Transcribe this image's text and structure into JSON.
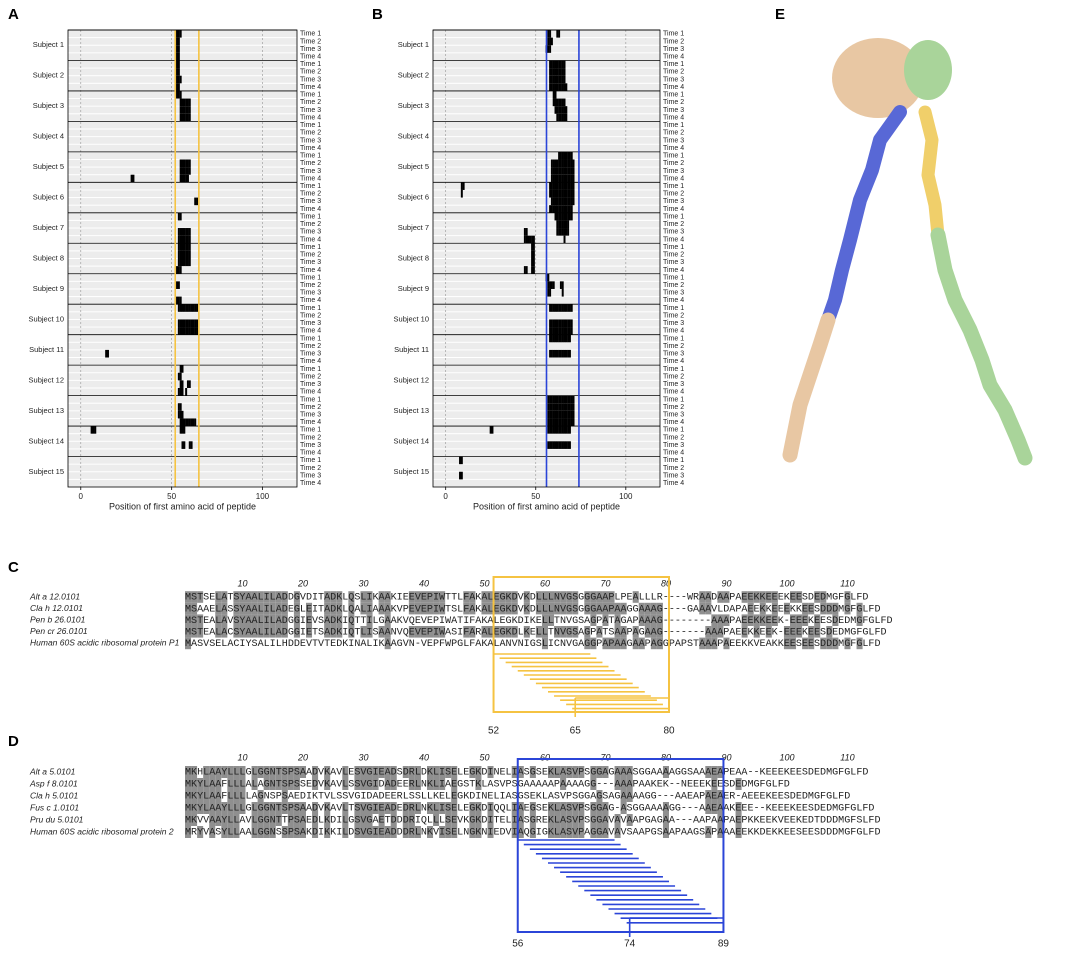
{
  "chart_data": [
    {
      "type": "tile",
      "label": "A",
      "xlabel": "Position of first amino acid of peptide",
      "xlim": [
        -7,
        119
      ],
      "xticks": [
        0,
        50,
        100
      ],
      "region": [
        52,
        65
      ],
      "region_color": "#f5c342",
      "color": "#000000",
      "subjects": [
        "Subject 1",
        "Subject 2",
        "Subject 3",
        "Subject 4",
        "Subject 5",
        "Subject 6",
        "Subject 7",
        "Subject 8",
        "Subject 9",
        "Subject 10",
        "Subject 11",
        "Subject 12",
        "Subject 13",
        "Subject 14",
        "Subject 15"
      ],
      "times": [
        "Time 1",
        "Time 2",
        "Time 3",
        "Time 4"
      ],
      "values": [
        [
          [
            53,
            54,
            55
          ],
          [
            53,
            54
          ],
          [
            53,
            54
          ],
          [
            53,
            54
          ]
        ],
        [
          [
            53,
            54
          ],
          [
            53,
            54
          ],
          [
            53,
            54,
            55
          ],
          [
            53,
            54
          ]
        ],
        [
          [
            53,
            54,
            55
          ],
          [
            55,
            56,
            57,
            58,
            59,
            60
          ],
          [
            55,
            56,
            57,
            58,
            59,
            60
          ],
          [
            55,
            56,
            57,
            58,
            59,
            60
          ]
        ],
        [
          [],
          [],
          [],
          []
        ],
        [
          [],
          [
            55,
            56,
            57,
            58,
            59,
            60
          ],
          [
            55,
            56,
            57,
            58,
            59,
            60
          ],
          [
            28,
            29,
            55,
            56,
            57,
            58,
            59
          ]
        ],
        [
          [],
          [],
          [
            63,
            64
          ],
          []
        ],
        [
          [
            54,
            55
          ],
          [],
          [
            54,
            55,
            56,
            57,
            58,
            59,
            60
          ],
          [
            54,
            55,
            56,
            57,
            58,
            59,
            60
          ]
        ],
        [
          [
            54,
            55,
            56,
            57,
            58,
            59,
            60
          ],
          [
            54,
            55,
            56,
            57,
            58,
            59,
            60
          ],
          [
            54,
            55,
            56,
            57,
            58,
            59,
            60
          ],
          [
            53,
            54,
            55
          ]
        ],
        [
          [],
          [
            53,
            54
          ],
          [],
          [
            53,
            54,
            55
          ]
        ],
        [
          [
            54,
            55,
            56,
            57,
            58,
            59,
            60,
            61,
            62,
            63,
            64
          ],
          [],
          [
            54,
            55,
            56,
            57,
            58,
            59,
            60,
            61,
            62,
            63,
            64
          ],
          [
            54,
            55,
            56,
            57,
            58,
            59,
            60,
            61,
            62,
            63,
            64
          ]
        ],
        [
          [],
          [],
          [
            14,
            15
          ],
          []
        ],
        [
          [
            55,
            56
          ],
          [
            54,
            55
          ],
          [
            55,
            56,
            59,
            60
          ],
          [
            54,
            55,
            56,
            58
          ]
        ],
        [
          [],
          [
            54,
            55
          ],
          [
            54,
            55,
            56
          ],
          [
            55,
            56,
            57,
            58,
            59,
            60,
            61,
            62,
            63
          ]
        ],
        [
          [
            6,
            7,
            8,
            55,
            56,
            57
          ],
          [],
          [
            56,
            57,
            60,
            61
          ],
          []
        ],
        [
          [],
          [],
          [],
          []
        ]
      ]
    },
    {
      "type": "tile",
      "label": "B",
      "xlabel": "Position of first amino acid of peptide",
      "xlim": [
        -7,
        119
      ],
      "xticks": [
        0,
        50,
        100
      ],
      "region": [
        56,
        74
      ],
      "region_color": "#2b45d8",
      "color": "#000000",
      "subjects": [
        "Subject 1",
        "Subject 2",
        "Subject 3",
        "Subject 4",
        "Subject 5",
        "Subject 6",
        "Subject 7",
        "Subject 8",
        "Subject 9",
        "Subject 10",
        "Subject 11",
        "Subject 12",
        "Subject 13",
        "Subject 14",
        "Subject 15"
      ],
      "times": [
        "Time 1",
        "Time 2",
        "Time 3",
        "Time 4"
      ],
      "values": [
        [
          [
            57,
            58,
            62,
            63
          ],
          [
            57,
            58,
            59
          ],
          [
            56,
            57,
            58
          ],
          []
        ],
        [
          [
            58,
            59,
            60,
            61,
            62,
            63,
            64,
            65,
            66
          ],
          [
            58,
            59,
            60,
            61,
            62,
            63,
            64,
            65,
            66
          ],
          [
            58,
            59,
            60,
            61,
            62,
            63,
            64,
            65,
            66
          ],
          [
            58,
            59,
            60,
            61,
            62,
            63,
            64,
            65,
            66,
            67
          ]
        ],
        [
          [
            60,
            61
          ],
          [
            60,
            61,
            62,
            63,
            64,
            65,
            66
          ],
          [
            61,
            62,
            63,
            64,
            65,
            66,
            67
          ],
          [
            62,
            63,
            64,
            65,
            66,
            67
          ]
        ],
        [
          [],
          [],
          [],
          []
        ],
        [
          [
            63,
            64,
            65,
            66,
            67,
            68,
            69,
            70
          ],
          [
            59,
            60,
            61,
            62,
            63,
            64,
            65,
            66,
            67,
            68,
            69,
            70,
            71
          ],
          [
            59,
            60,
            61,
            62,
            63,
            64,
            65,
            66,
            67,
            68,
            69,
            70,
            71
          ],
          [
            59,
            60,
            61,
            62,
            63,
            64,
            65,
            66,
            67,
            68,
            69,
            70,
            71
          ]
        ],
        [
          [
            9,
            10,
            58,
            59,
            60,
            61,
            62,
            63,
            64,
            65,
            66,
            67,
            68,
            69,
            70,
            71
          ],
          [
            9,
            58,
            59,
            60,
            61,
            62,
            63,
            64,
            65,
            66,
            67,
            68,
            69,
            70,
            71
          ],
          [
            59,
            60,
            61,
            62,
            63,
            64,
            65,
            66,
            67,
            68,
            69,
            70,
            71
          ],
          [
            58,
            59,
            60,
            61,
            62,
            63,
            64,
            65,
            66,
            67,
            68,
            69,
            70
          ]
        ],
        [
          [
            61,
            62,
            63,
            64,
            65,
            66,
            67,
            68,
            69,
            70
          ],
          [
            62,
            63,
            64,
            65,
            66,
            67,
            68
          ],
          [
            44,
            45,
            62,
            63,
            64,
            65,
            66,
            67,
            68
          ],
          [
            44,
            45,
            46,
            47,
            48,
            49,
            66
          ]
        ],
        [
          [
            48,
            49
          ],
          [
            48,
            49
          ],
          [
            48,
            49
          ],
          [
            44,
            45,
            48,
            49
          ]
        ],
        [
          [
            56,
            57
          ],
          [
            57,
            58,
            59,
            60,
            64,
            65
          ],
          [
            57,
            58,
            65
          ],
          []
        ],
        [
          [
            58,
            59,
            60,
            61,
            62,
            63,
            64,
            65,
            66,
            67,
            68,
            69,
            70
          ],
          [],
          [
            58,
            59,
            60,
            61,
            62,
            63,
            64,
            65,
            66,
            67,
            68,
            69,
            70
          ],
          [
            58,
            59,
            60,
            61,
            62,
            63,
            64,
            65,
            66,
            67,
            68,
            69,
            70
          ]
        ],
        [
          [
            58,
            59,
            60,
            61,
            62,
            63,
            64,
            65,
            66,
            67,
            68,
            69
          ],
          [],
          [
            58,
            59,
            60,
            61,
            62,
            63,
            64,
            65,
            66,
            67,
            68,
            69
          ],
          []
        ],
        [
          [],
          [],
          [],
          []
        ],
        [
          [
            57,
            58,
            59,
            60,
            61,
            62,
            63,
            64,
            65,
            66,
            67,
            68,
            69,
            70,
            71
          ],
          [
            57,
            58,
            59,
            60,
            61,
            62,
            63,
            64,
            65,
            66,
            67,
            68,
            69,
            70,
            71
          ],
          [
            57,
            58,
            59,
            60,
            61,
            62,
            63,
            64,
            65,
            66,
            67,
            68,
            69,
            70,
            71
          ],
          [
            57,
            58,
            59,
            60,
            61,
            62,
            63,
            64,
            65,
            66,
            67,
            68,
            69,
            70,
            71
          ]
        ],
        [
          [
            25,
            26,
            57,
            58,
            59,
            60,
            61,
            62,
            63,
            64,
            65,
            66,
            67,
            68,
            69
          ],
          [],
          [
            57,
            58,
            59,
            60,
            61,
            62,
            63,
            64,
            65,
            66,
            67,
            68,
            69
          ],
          []
        ],
        [
          [
            8,
            9
          ],
          [],
          [
            8,
            9
          ],
          []
        ]
      ]
    }
  ],
  "alignments": [
    {
      "label": "C",
      "color": "#f5c342",
      "ruler": [
        10,
        20,
        30,
        40,
        50,
        60,
        70,
        80,
        90,
        100,
        110
      ],
      "names": [
        "Alt a 12.0101",
        "Cla h 12.0101",
        "Pen b 26.0101",
        "Pen cr 26.0101",
        "Human 60S acidic ribosomal protein P1"
      ],
      "sequences": [
        "MSTSELATSYAALILADDGVDITADKLQSLIKAAKIEEVEPIWTTLFAKALEGKDVKDLLLNVGSGGGAAPLPEALLLR----WRAADAAPAEEKKEEEKEESDEDMGFGLFD",
        "MSAAELASSYAALILADEGLEITADKLQALIAAAKVPEVEPIWTSLFAKALEGKDVKDLLLNVGSGGGAAPAAGGAAAG----GAAAVLDAPAEEKKEEEKKEESDDDMGFGLFD",
        "MSTEALAVSYAALILADGGIEVSADKIQTTILGAAKVQEVEPIWATIFAKALEGKDIKELLTNVGSAGPATAGAPAAAG--------AAAPAEEKKEEK-EEEKEESDEDMGFGLFD",
        "MSTEALACSYAALILADGGIETSADKIQTLISAANVQEVEPIWASIFARALEGKDLKELLTNVGSAGPATSAAPAGAAG-------AAAPAEEKKEEK-EEEKEESDEDMGFGLFD",
        "MASVSELACIYSALILHDDEVTVTEDKINALIKAAGVN-VEPFWPGLFAKALANVNIGSLICNVGAGGPAPAAGAAPAGGPAPSTAAAPAEEKKVEAKKEESEESDDDMGFGLFD"
      ],
      "box_labels": [
        52,
        65,
        80
      ],
      "peptides": [
        [
          52,
          67
        ],
        [
          53,
          68
        ],
        [
          54,
          69
        ],
        [
          55,
          70
        ],
        [
          56,
          71
        ],
        [
          57,
          72
        ],
        [
          58,
          73
        ],
        [
          59,
          74
        ],
        [
          60,
          75
        ],
        [
          61,
          76
        ],
        [
          62,
          77
        ],
        [
          63,
          78
        ],
        [
          64,
          79
        ],
        [
          65,
          80
        ]
      ]
    },
    {
      "label": "D",
      "color": "#2b45d8",
      "ruler": [
        10,
        20,
        30,
        40,
        50,
        60,
        70,
        80,
        90,
        100,
        110
      ],
      "names": [
        "Alt a 5.0101",
        "Asp f 8.0101",
        "Cla h 5.0101",
        "Fus c 1.0101",
        "Pru du 5.0101",
        "Human 60S acidic ribosomal protein 2"
      ],
      "sequences": [
        "MKHLAAYLLLGLGGNTSPSAADVKAVLESVGIEADSDRLDKLISELEGKDINELIASGSEKLASVPSGGAGAAASGGAAAAGGSAAAEAPEAA--KEEEKEESDEDMGFGLFD",
        "MKYLAAFLLLALAGNTSPSSEDVKAVLSSVGIDADEERLNKLIAEGSTKLASVPSGAAAAAPAAAAGG---AAAPAAKEK--NEEEKEESDEDMGFGLFD",
        "MKYLAAFLLLLAGNSPSAEDIKTVLSSVGIDADEERLSSLLKELEGKDINELIASGSEKLASVPSGGAGSAGAAAAGG---AAEAPAEAER-AEEEKEESDEDMGFGLFD",
        "MKYLAAYLLLGLGGNTSPSAADVKAVLTSVGIEADEDRLNKLISELEGKDIQQLIAEGSEKLASVPSGGAG-ASGGAAAAGG---AAEAAKEEE--KEEEKEESDEDMGFGLFD",
        "MKVVAAYLLAVLGGNTTPSAEDLKDILGSVGAETDDDRIQLLLSEVKGKDITELIASGREKLASVPSGGAVAVAAPGAGAA---AAPAAPAEPKKEEKVEEKEDTDDDMGFSLFD",
        "MRYVASYLLAALGGNSSPSAKDIKKILDSVGIEADDDRLNKVISELNGKNIEDVIAQGIGKLASVPAGGAVAVSAAPGSAAPAAGSAPAAAEEKKDEKKEESEESDDDMGFGLFD"
      ],
      "box_labels": [
        56,
        74,
        89
      ],
      "peptides": [
        [
          56,
          71
        ],
        [
          57,
          72
        ],
        [
          58,
          73
        ],
        [
          59,
          74
        ],
        [
          60,
          75
        ],
        [
          61,
          76
        ],
        [
          62,
          77
        ],
        [
          63,
          78
        ],
        [
          64,
          79
        ],
        [
          65,
          80
        ],
        [
          66,
          81
        ],
        [
          67,
          82
        ],
        [
          68,
          83
        ],
        [
          69,
          84
        ],
        [
          70,
          85
        ],
        [
          71,
          86
        ],
        [
          72,
          87
        ],
        [
          73,
          88
        ],
        [
          74,
          89
        ]
      ]
    }
  ],
  "structure": {
    "label": "E"
  }
}
